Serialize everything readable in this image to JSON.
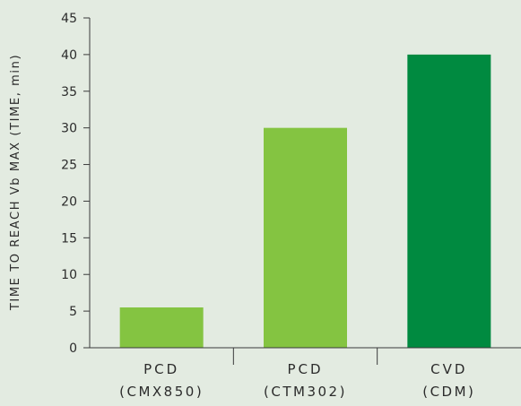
{
  "chart_data": {
    "type": "bar",
    "ylabel": "TIME TO REACH Vb MAX (TIME, min)",
    "xlabel": "",
    "ylim": [
      0,
      45
    ],
    "yticks": [
      0,
      5,
      10,
      15,
      20,
      25,
      30,
      35,
      40,
      45
    ],
    "grid": false,
    "categories": [
      {
        "line1": "PCD",
        "line2": "(CMX850)"
      },
      {
        "line1": "PCD",
        "line2": "(CTM302)"
      },
      {
        "line1": "CVD",
        "line2": "(CDM)"
      }
    ],
    "values": [
      5.5,
      30,
      40
    ],
    "colors": [
      "#84c441",
      "#84c441",
      "#008a40"
    ]
  }
}
